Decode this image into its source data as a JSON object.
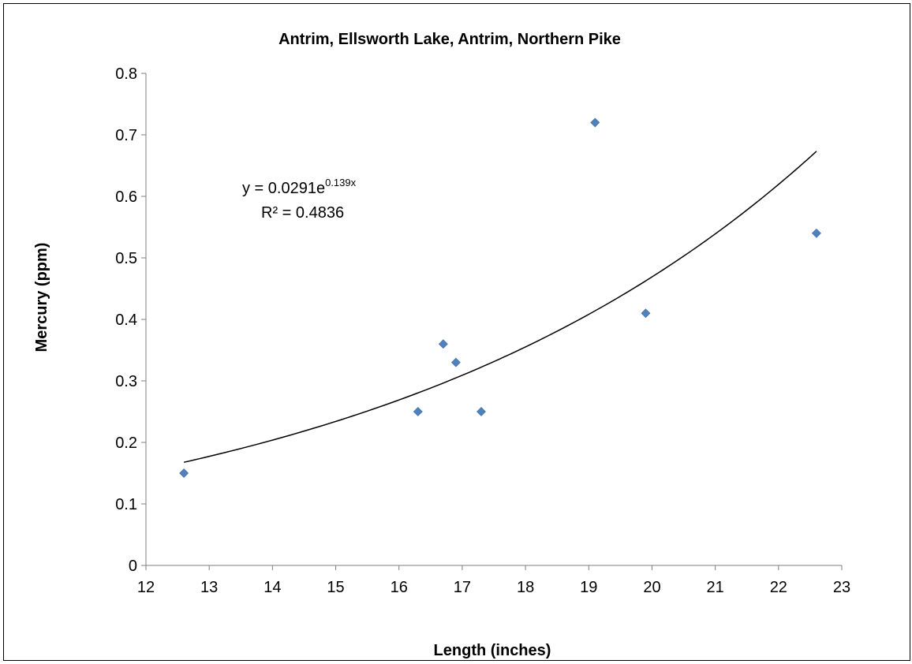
{
  "chart_data": {
    "type": "scatter",
    "title": "Antrim, Ellsworth Lake, Antrim, Northern Pike",
    "xlabel": "Length (inches)",
    "ylabel": "Mercury (ppm)",
    "xlim": [
      12,
      23
    ],
    "ylim": [
      0,
      0.8
    ],
    "x_ticks": [
      12,
      13,
      14,
      15,
      16,
      17,
      18,
      19,
      20,
      21,
      22,
      23
    ],
    "y_ticks": [
      0,
      0.1,
      0.2,
      0.3,
      0.4,
      0.5,
      0.6,
      0.7,
      0.8
    ],
    "grid": false,
    "legend": "none",
    "marker_color": "#4F81BD",
    "marker_shape": "diamond",
    "trendline_color": "#000000",
    "series": [
      {
        "x": [
          12.6,
          16.3,
          16.7,
          16.9,
          17.3,
          19.1,
          19.9,
          22.6
        ],
        "y": [
          0.15,
          0.25,
          0.36,
          0.33,
          0.25,
          0.72,
          0.41,
          0.54
        ]
      }
    ],
    "trendline": {
      "type": "exponential",
      "a": 0.0291,
      "b": 0.139,
      "x_range": [
        12.6,
        22.6
      ]
    },
    "annotations": {
      "equation_base": "y = 0.0291e",
      "equation_exponent": "0.139x",
      "r_squared": "R² = 0.4836"
    }
  }
}
